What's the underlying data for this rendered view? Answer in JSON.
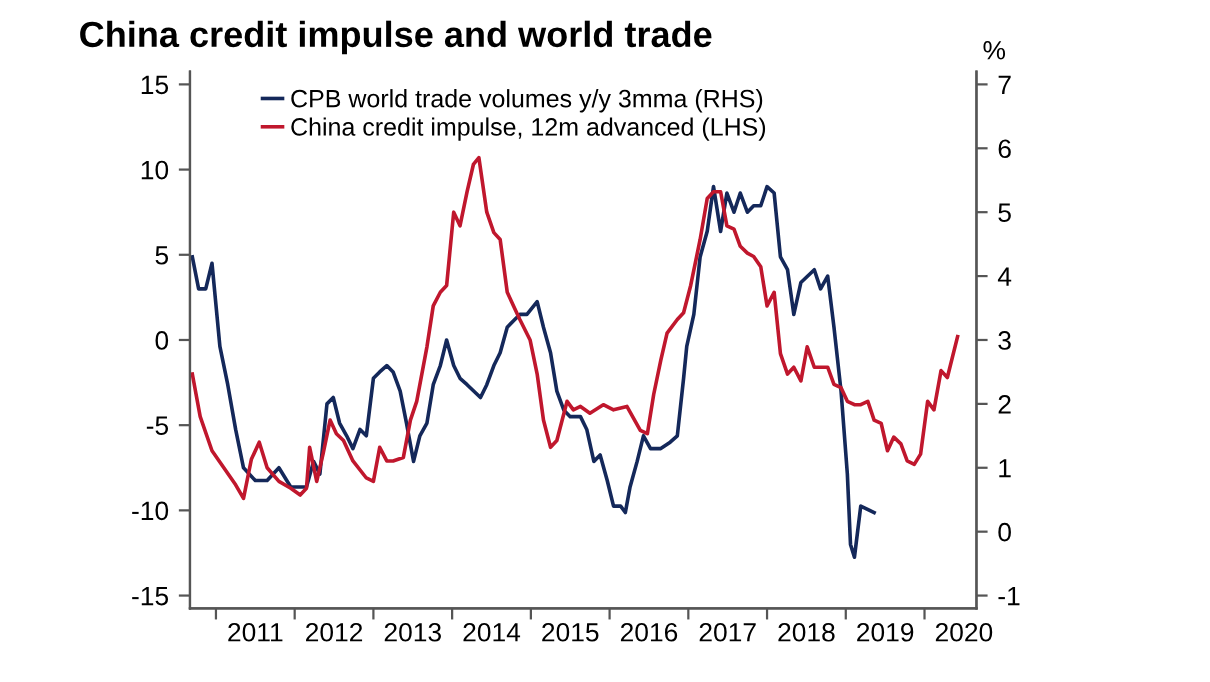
{
  "chart_data": {
    "type": "line",
    "title": "China credit impulse and world trade",
    "y2label": "%",
    "series": [
      {
        "name": "CPB world trade volumes y/y 3mma (RHS)",
        "color": "#14285a",
        "axis": "y2",
        "x": [
          2010.7,
          2010.78,
          2010.87,
          2010.95,
          2011.05,
          2011.15,
          2011.25,
          2011.35,
          2011.5,
          2011.65,
          2011.8,
          2011.95,
          2012.07,
          2012.15,
          2012.24,
          2012.32,
          2012.41,
          2012.49,
          2012.57,
          2012.66,
          2012.74,
          2012.83,
          2012.91,
          2013.0,
          2013.08,
          2013.17,
          2013.25,
          2013.34,
          2013.42,
          2013.51,
          2013.59,
          2013.68,
          2013.76,
          2013.85,
          2013.93,
          2014.02,
          2014.1,
          2014.19,
          2014.36,
          2014.44,
          2014.53,
          2014.61,
          2014.7,
          2014.78,
          2014.86,
          2014.95,
          2015.08,
          2015.16,
          2015.25,
          2015.33,
          2015.42,
          2015.5,
          2015.63,
          2015.71,
          2015.8,
          2015.88,
          2015.97,
          2016.05,
          2016.14,
          2016.2,
          2016.26,
          2016.35,
          2016.43,
          2016.52,
          2016.65,
          2016.77,
          2016.86,
          2016.94,
          2016.98,
          2017.07,
          2017.15,
          2017.24,
          2017.32,
          2017.41,
          2017.49,
          2017.58,
          2017.66,
          2017.75,
          2017.83,
          2017.92,
          2018.0,
          2018.09,
          2018.17,
          2018.26,
          2018.34,
          2018.43,
          2018.6,
          2018.68,
          2018.77,
          2018.85,
          2018.94,
          2019.02,
          2019.06,
          2019.11,
          2019.19,
          2019.36
        ],
        "values": [
          4.3,
          3.8,
          3.8,
          4.2,
          2.9,
          2.3,
          1.6,
          1.0,
          0.8,
          0.8,
          1.0,
          0.7,
          0.7,
          0.7,
          1.1,
          0.9,
          2.0,
          2.1,
          1.7,
          1.5,
          1.3,
          1.6,
          1.5,
          2.4,
          2.5,
          2.6,
          2.5,
          2.2,
          1.7,
          1.1,
          1.5,
          1.7,
          2.3,
          2.6,
          3.0,
          2.6,
          2.4,
          2.3,
          2.1,
          2.3,
          2.6,
          2.8,
          3.2,
          3.3,
          3.4,
          3.4,
          3.6,
          3.2,
          2.8,
          2.2,
          1.9,
          1.8,
          1.8,
          1.6,
          1.1,
          1.2,
          0.8,
          0.4,
          0.4,
          0.3,
          0.7,
          1.1,
          1.5,
          1.3,
          1.3,
          1.4,
          1.5,
          2.4,
          2.9,
          3.4,
          4.3,
          4.7,
          5.4,
          4.7,
          5.3,
          5.0,
          5.3,
          5.0,
          5.1,
          5.1,
          5.4,
          5.3,
          4.3,
          4.1,
          3.4,
          3.9,
          4.1,
          3.8,
          4.0,
          3.2,
          2.2,
          0.9,
          -0.2,
          -0.4,
          0.4,
          0.3
        ]
      },
      {
        "name": "China credit impulse, 12m advanced (LHS)",
        "color": "#c0172d",
        "x": [
          2010.7,
          2010.8,
          2010.95,
          2011.1,
          2011.25,
          2011.35,
          2011.45,
          2011.55,
          2011.65,
          2011.8,
          2011.95,
          2012.07,
          2012.15,
          2012.19,
          2012.28,
          2012.36,
          2012.45,
          2012.53,
          2012.62,
          2012.74,
          2012.91,
          2013.0,
          2013.08,
          2013.17,
          2013.25,
          2013.38,
          2013.47,
          2013.55,
          2013.68,
          2013.76,
          2013.85,
          2013.93,
          2014.02,
          2014.1,
          2014.19,
          2014.27,
          2014.34,
          2014.44,
          2014.53,
          2014.61,
          2014.7,
          2014.78,
          2014.86,
          2014.99,
          2015.08,
          2015.16,
          2015.25,
          2015.33,
          2015.46,
          2015.54,
          2015.63,
          2015.75,
          2015.92,
          2016.05,
          2016.22,
          2016.39,
          2016.48,
          2016.56,
          2016.65,
          2016.73,
          2016.86,
          2016.94,
          2017.03,
          2017.15,
          2017.24,
          2017.32,
          2017.41,
          2017.49,
          2017.58,
          2017.66,
          2017.75,
          2017.83,
          2017.92,
          2018.0,
          2018.09,
          2018.17,
          2018.26,
          2018.34,
          2018.43,
          2018.51,
          2018.6,
          2018.68,
          2018.77,
          2018.85,
          2018.94,
          2019.02,
          2019.11,
          2019.19,
          2019.28,
          2019.36,
          2019.45,
          2019.53,
          2019.61,
          2019.7,
          2019.78,
          2019.87,
          2019.95,
          2020.04,
          2020.12,
          2020.21,
          2020.29,
          2020.42
        ],
        "values": [
          -2.0,
          -4.5,
          -6.5,
          -7.5,
          -8.5,
          -9.3,
          -7.0,
          -6.0,
          -7.5,
          -8.3,
          -8.7,
          -9.1,
          -8.7,
          -6.3,
          -8.3,
          -6.7,
          -4.7,
          -5.5,
          -5.9,
          -7.1,
          -8.1,
          -8.3,
          -6.3,
          -7.1,
          -7.1,
          -6.9,
          -4.7,
          -3.6,
          -0.4,
          2.0,
          2.8,
          3.2,
          7.5,
          6.7,
          8.7,
          10.3,
          10.7,
          7.5,
          6.3,
          5.9,
          2.8,
          2.0,
          1.2,
          0.0,
          -2.0,
          -4.7,
          -6.3,
          -5.9,
          -3.6,
          -4.1,
          -3.9,
          -4.3,
          -3.8,
          -4.1,
          -3.9,
          -5.3,
          -5.5,
          -3.2,
          -1.2,
          0.4,
          1.2,
          1.6,
          3.2,
          5.9,
          8.3,
          8.7,
          8.7,
          6.7,
          6.5,
          5.5,
          5.1,
          4.9,
          4.3,
          2.0,
          2.8,
          -0.8,
          -2.0,
          -1.6,
          -2.4,
          -0.4,
          -1.6,
          -1.6,
          -1.6,
          -2.6,
          -2.8,
          -3.6,
          -3.8,
          -3.8,
          -3.6,
          -4.7,
          -4.9,
          -6.5,
          -5.7,
          -6.1,
          -7.1,
          -7.3,
          -6.7,
          -3.6,
          -4.1,
          -1.8,
          -2.2,
          0.2
        ]
      }
    ],
    "xlim": [
      2010.67,
      2020.66
    ],
    "xticks": [
      {
        "value": 2011,
        "label": null
      },
      {
        "value": 2012,
        "label": null
      },
      {
        "value": 2013,
        "label": null
      },
      {
        "value": 2014,
        "label": null
      },
      {
        "value": 2015,
        "label": null
      },
      {
        "value": 2016,
        "label": null
      },
      {
        "value": 2017,
        "label": null
      },
      {
        "value": 2018,
        "label": null
      },
      {
        "value": 2019,
        "label": null
      },
      {
        "value": 2020,
        "label": null
      },
      {
        "value": 2011.5,
        "label": "2011"
      },
      {
        "value": 2012.5,
        "label": "2012"
      },
      {
        "value": 2013.5,
        "label": "2013"
      },
      {
        "value": 2014.5,
        "label": "2014"
      },
      {
        "value": 2015.5,
        "label": "2015"
      },
      {
        "value": 2016.5,
        "label": "2016"
      },
      {
        "value": 2017.5,
        "label": "2017"
      },
      {
        "value": 2018.5,
        "label": "2018"
      },
      {
        "value": 2019.5,
        "label": "2019"
      },
      {
        "value": 2020.5,
        "label": "2020"
      }
    ],
    "ylim": [
      -15.75,
      15.75
    ],
    "yticks": [
      -15,
      -10,
      -5,
      0,
      5,
      10,
      15
    ],
    "y2lim": [
      -1.2,
      7.2
    ],
    "y2ticks": [
      -1,
      0,
      1,
      2,
      3,
      4,
      5,
      6,
      7
    ],
    "legend": "top left",
    "grid": false,
    "marker": "none",
    "line_style": "solid"
  }
}
